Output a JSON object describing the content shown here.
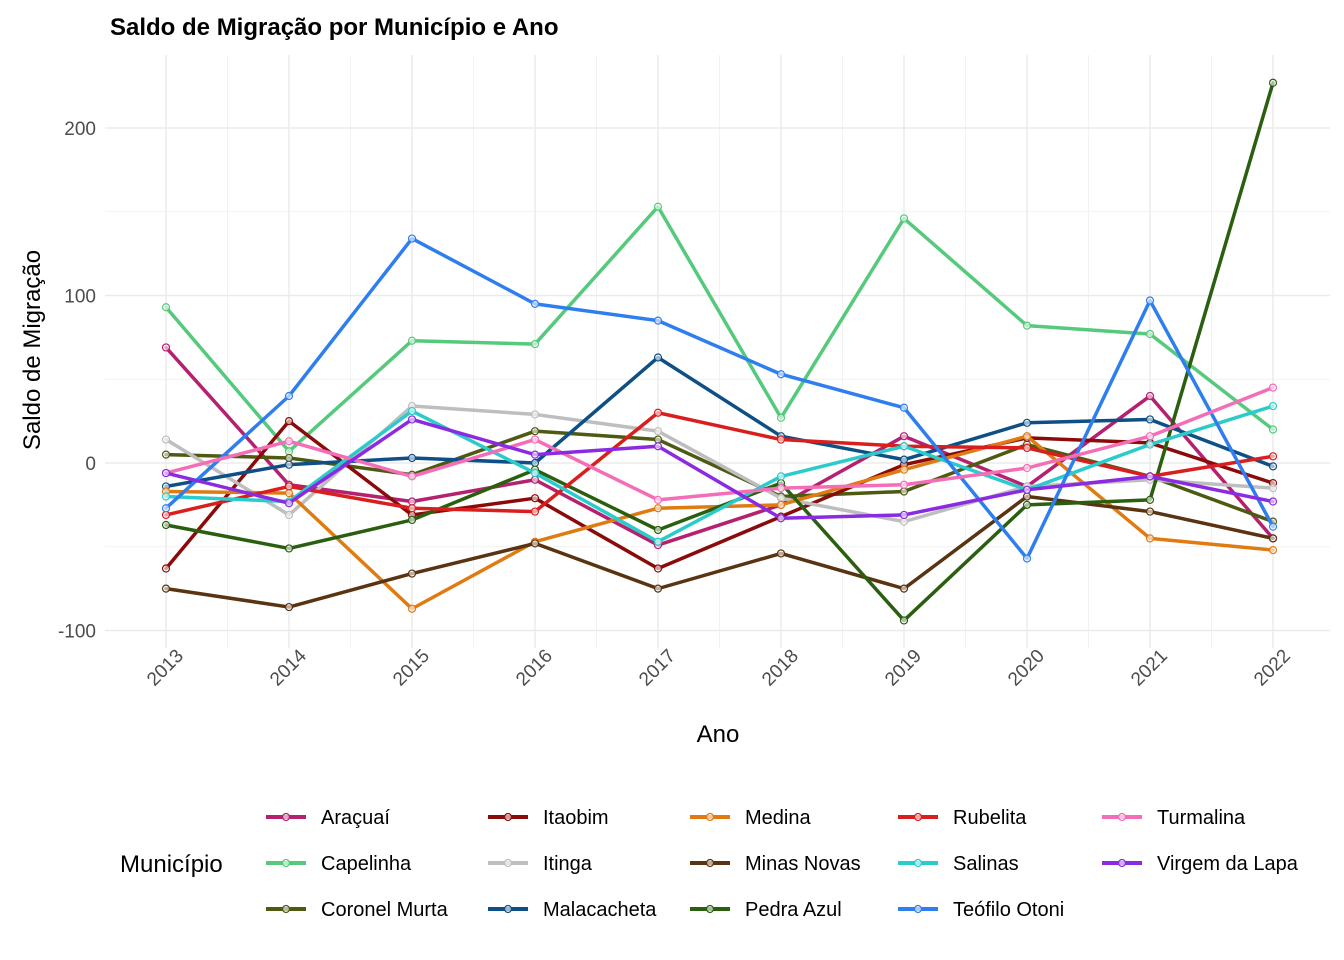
{
  "chart_data": {
    "type": "line",
    "title": "Saldo de Migração por Município e Ano",
    "xlabel": "Ano",
    "ylabel": "Saldo de Migração",
    "x": [
      2013,
      2014,
      2015,
      2016,
      2017,
      2018,
      2019,
      2020,
      2021,
      2022
    ],
    "x_tick_labels": [
      "2013",
      "2014",
      "2015",
      "2016",
      "2017",
      "2018",
      "2019",
      "2020",
      "2021",
      "2022"
    ],
    "y_ticks": [
      -100,
      0,
      100,
      200
    ],
    "y_tick_labels": [
      "-100",
      "0",
      "100",
      "200"
    ],
    "ylim": [
      -110,
      235
    ],
    "grid": true,
    "legend_title": "Município",
    "legend_position": "bottom",
    "series": [
      {
        "name": "Araçuaí",
        "color": "#B5206F",
        "values": [
          69,
          -13,
          -23,
          -10,
          -49,
          -25,
          16,
          -14,
          40,
          -45
        ]
      },
      {
        "name": "Capelinha",
        "color": "#55C97C",
        "values": [
          93,
          7,
          73,
          71,
          153,
          27,
          146,
          82,
          77,
          20
        ]
      },
      {
        "name": "Coronel Murta",
        "color": "#4D5A12",
        "values": [
          5,
          3,
          -7,
          19,
          14,
          -20,
          -17,
          11,
          -8,
          -35
        ]
      },
      {
        "name": "Itaobim",
        "color": "#8B0A0A",
        "values": [
          -63,
          25,
          -31,
          -21,
          -63,
          -32,
          -1,
          15,
          12,
          -12
        ]
      },
      {
        "name": "Itinga",
        "color": "#BEBEBE",
        "values": [
          14,
          -31,
          34,
          29,
          19,
          -21,
          -35,
          -14,
          -10,
          -15
        ]
      },
      {
        "name": "Malacacheta",
        "color": "#0E4F86",
        "values": [
          -14,
          -1,
          3,
          0,
          63,
          16,
          2,
          24,
          26,
          -2
        ]
      },
      {
        "name": "Medina",
        "color": "#E07B12",
        "values": [
          -17,
          -18,
          -87,
          -47,
          -27,
          -25,
          -4,
          16,
          -45,
          -52
        ]
      },
      {
        "name": "Minas Novas",
        "color": "#5A3311",
        "values": [
          -75,
          -86,
          -66,
          -48,
          -75,
          -54,
          -75,
          -20,
          -29,
          -45
        ]
      },
      {
        "name": "Pedra Azul",
        "color": "#2B5F10",
        "values": [
          -37,
          -51,
          -34,
          -4,
          -40,
          -12,
          -94,
          -25,
          -22,
          227
        ]
      },
      {
        "name": "Rubelita",
        "color": "#D91E1E",
        "values": [
          -31,
          -14,
          -27,
          -29,
          30,
          14,
          10,
          9,
          -8,
          4
        ]
      },
      {
        "name": "Salinas",
        "color": "#2CCBCB",
        "values": [
          -20,
          -23,
          31,
          -6,
          -47,
          -8,
          10,
          -16,
          11,
          34
        ]
      },
      {
        "name": "Teófilo Otoni",
        "color": "#2F7EF0",
        "values": [
          -27,
          40,
          134,
          95,
          85,
          53,
          33,
          -57,
          97,
          -38
        ]
      },
      {
        "name": "Turmalina",
        "color": "#F36EB6",
        "values": [
          -6,
          13,
          -8,
          14,
          -22,
          -15,
          -13,
          -3,
          16,
          45
        ]
      },
      {
        "name": "Virgem da Lapa",
        "color": "#8A2BE2",
        "values": [
          -6,
          -24,
          26,
          5,
          10,
          -33,
          -31,
          -16,
          -8,
          -23
        ]
      }
    ]
  }
}
